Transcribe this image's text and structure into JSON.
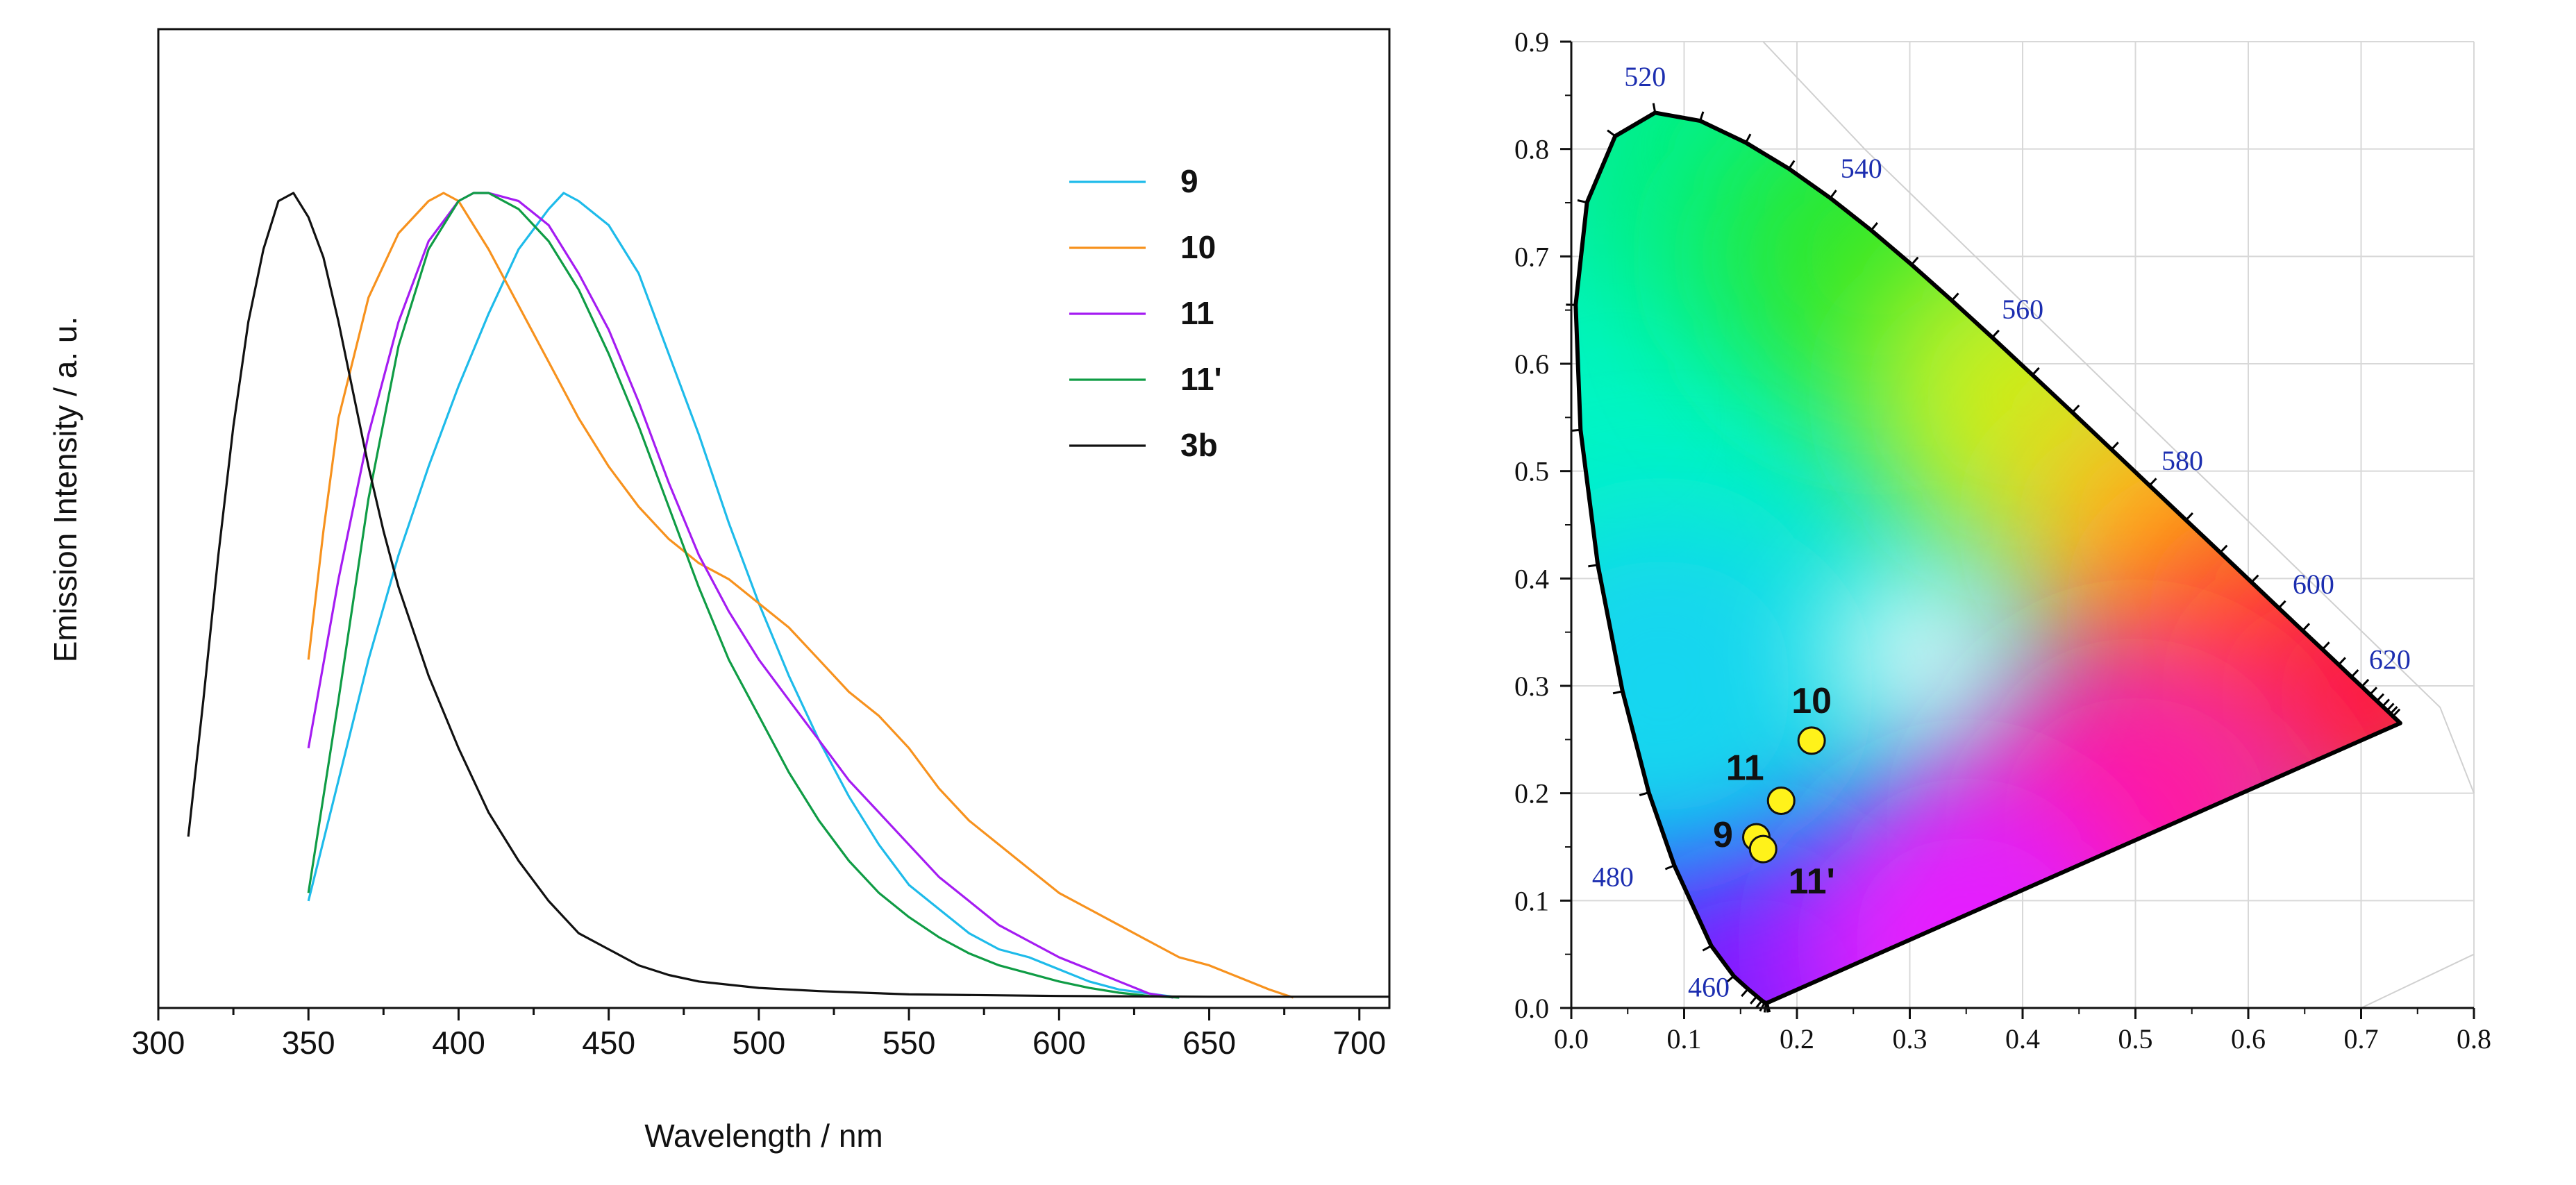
{
  "chart_data": [
    {
      "type": "line",
      "title": "",
      "xlabel": "Wavelength / nm",
      "ylabel": "Emission Intensity / a. u.",
      "xlim": [
        300,
        710
      ],
      "ylim": [
        0,
        1.05
      ],
      "x_ticks": [
        300,
        350,
        400,
        450,
        500,
        550,
        600,
        650,
        700
      ],
      "x_tick_labels": [
        "300",
        "350",
        "400",
        "450",
        "500",
        "550",
        "600",
        "650",
        "700"
      ],
      "y_ticks_shown": false,
      "legend_position": "top-right",
      "series": [
        {
          "name": "9",
          "color": "#1EBBEA",
          "x": [
            350,
            360,
            370,
            380,
            390,
            400,
            410,
            420,
            430,
            435,
            440,
            450,
            460,
            470,
            480,
            490,
            500,
            510,
            520,
            530,
            540,
            550,
            560,
            570,
            580,
            590,
            600,
            610,
            620,
            630,
            640
          ],
          "y": [
            0.12,
            0.27,
            0.42,
            0.55,
            0.66,
            0.76,
            0.85,
            0.93,
            0.98,
            1.0,
            0.99,
            0.96,
            0.9,
            0.8,
            0.7,
            0.59,
            0.49,
            0.4,
            0.32,
            0.25,
            0.19,
            0.14,
            0.11,
            0.08,
            0.06,
            0.05,
            0.035,
            0.02,
            0.01,
            0.005,
            0.0
          ]
        },
        {
          "name": "10",
          "color": "#F7921E",
          "x": [
            350,
            355,
            360,
            370,
            380,
            390,
            395,
            400,
            410,
            420,
            430,
            440,
            450,
            460,
            470,
            480,
            490,
            500,
            510,
            520,
            530,
            540,
            550,
            560,
            570,
            580,
            590,
            600,
            610,
            620,
            630,
            640,
            650,
            660,
            670,
            678
          ],
          "y": [
            0.42,
            0.58,
            0.72,
            0.87,
            0.95,
            0.99,
            1.0,
            0.99,
            0.93,
            0.86,
            0.79,
            0.72,
            0.66,
            0.61,
            0.57,
            0.54,
            0.52,
            0.49,
            0.46,
            0.42,
            0.38,
            0.35,
            0.31,
            0.26,
            0.22,
            0.19,
            0.16,
            0.13,
            0.11,
            0.09,
            0.07,
            0.05,
            0.04,
            0.025,
            0.01,
            0.0
          ]
        },
        {
          "name": "11",
          "color": "#A51CF2",
          "x": [
            350,
            360,
            370,
            380,
            390,
            400,
            405,
            410,
            420,
            430,
            440,
            450,
            460,
            470,
            480,
            490,
            500,
            510,
            520,
            530,
            540,
            550,
            560,
            570,
            580,
            590,
            600,
            610,
            620,
            630,
            638
          ],
          "y": [
            0.31,
            0.52,
            0.7,
            0.84,
            0.94,
            0.99,
            1.0,
            1.0,
            0.99,
            0.96,
            0.9,
            0.83,
            0.74,
            0.64,
            0.55,
            0.48,
            0.42,
            0.37,
            0.32,
            0.27,
            0.23,
            0.19,
            0.15,
            0.12,
            0.09,
            0.07,
            0.05,
            0.035,
            0.02,
            0.005,
            0.0
          ]
        },
        {
          "name": "11'",
          "color": "#0F9C45",
          "x": [
            350,
            360,
            370,
            380,
            390,
            400,
            405,
            410,
            420,
            430,
            440,
            450,
            460,
            470,
            480,
            490,
            500,
            510,
            520,
            530,
            540,
            550,
            560,
            570,
            580,
            590,
            600,
            610,
            620,
            630,
            640
          ],
          "y": [
            0.13,
            0.37,
            0.62,
            0.81,
            0.93,
            0.99,
            1.0,
            1.0,
            0.98,
            0.94,
            0.88,
            0.8,
            0.71,
            0.61,
            0.51,
            0.42,
            0.35,
            0.28,
            0.22,
            0.17,
            0.13,
            0.1,
            0.075,
            0.055,
            0.04,
            0.03,
            0.02,
            0.012,
            0.006,
            0.002,
            0.0
          ]
        },
        {
          "name": "3b",
          "color": "#111111",
          "x": [
            310,
            315,
            320,
            325,
            330,
            335,
            340,
            345,
            350,
            355,
            360,
            365,
            370,
            375,
            380,
            390,
            400,
            410,
            420,
            430,
            440,
            450,
            460,
            470,
            480,
            500,
            520,
            550,
            600,
            650,
            710
          ],
          "y": [
            0.2,
            0.37,
            0.55,
            0.71,
            0.84,
            0.93,
            0.99,
            1.0,
            0.97,
            0.92,
            0.84,
            0.75,
            0.66,
            0.58,
            0.51,
            0.4,
            0.31,
            0.23,
            0.17,
            0.12,
            0.08,
            0.06,
            0.04,
            0.028,
            0.02,
            0.012,
            0.008,
            0.004,
            0.002,
            0.001,
            0.001
          ]
        }
      ]
    },
    {
      "type": "scatter",
      "title": "",
      "xlabel": "",
      "ylabel": "",
      "xlim": [
        0.0,
        0.8
      ],
      "ylim": [
        0.0,
        0.9
      ],
      "x_tick_labels": [
        "0.0",
        "0.1",
        "0.2",
        "0.3",
        "0.4",
        "0.5",
        "0.6",
        "0.7",
        "0.8"
      ],
      "y_tick_labels": [
        "0.0",
        "0.1",
        "0.2",
        "0.3",
        "0.4",
        "0.5",
        "0.6",
        "0.7",
        "0.8",
        "0.9"
      ],
      "grid": true,
      "background": "CIE 1931 chromaticity diagram",
      "locus_color": "#000000",
      "wavelength_label_color": "#1C2EB0",
      "wavelength_labels": [
        {
          "label": "460",
          "x": 0.144,
          "y": 0.03
        },
        {
          "label": "480",
          "x": 0.091,
          "y": 0.133
        },
        {
          "label": "520",
          "x": 0.074,
          "y": 0.834
        },
        {
          "label": "540",
          "x": 0.23,
          "y": 0.754
        },
        {
          "label": "560",
          "x": 0.373,
          "y": 0.624
        },
        {
          "label": "580",
          "x": 0.512,
          "y": 0.487
        },
        {
          "label": "600",
          "x": 0.627,
          "y": 0.373
        },
        {
          "label": "620",
          "x": 0.691,
          "y": 0.308
        }
      ],
      "points_color": "#FFF21A",
      "points": [
        {
          "label": "10",
          "x": 0.213,
          "y": 0.249
        },
        {
          "label": "11",
          "x": 0.186,
          "y": 0.193
        },
        {
          "label": "9",
          "x": 0.164,
          "y": 0.159
        },
        {
          "label": "11'",
          "x": 0.17,
          "y": 0.148
        }
      ]
    }
  ]
}
